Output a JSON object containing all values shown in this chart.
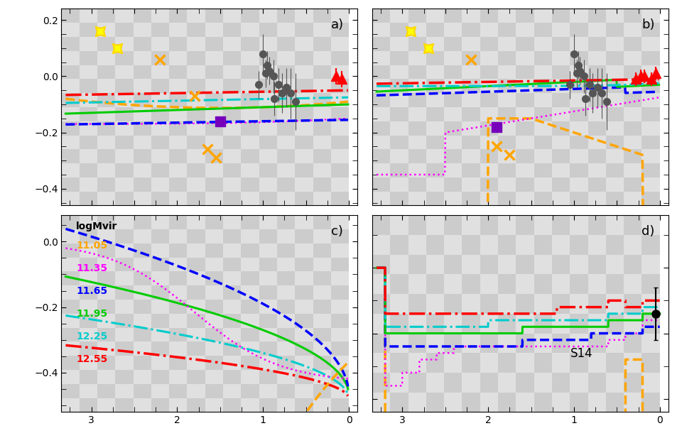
{
  "fig_width": 9.6,
  "fig_height": 6.24,
  "checker_color1": "#cccccc",
  "checker_color2": "#e0e0e0",
  "panel_labels": [
    "a)",
    "b)",
    "c)",
    "d)"
  ],
  "xlim": [
    3.35,
    -0.1
  ],
  "ylim_ab": [
    -0.46,
    0.24
  ],
  "ylim_c": [
    -0.52,
    0.08
  ],
  "ylim_d": [
    -0.22,
    0.08
  ],
  "legend_logMvir": [
    "11.05",
    "11.35",
    "11.65",
    "11.95",
    "12.25",
    "12.55"
  ],
  "legend_colors": [
    "#FFA500",
    "#FF00FF",
    "#0000FF",
    "#00CC00",
    "#00CCCC",
    "#FF0000"
  ],
  "line_styles_ab": [
    "--",
    ":",
    "--",
    "-",
    "-.",
    "-."
  ],
  "line_widths_ab": [
    2.5,
    1.8,
    2.5,
    2.2,
    2.2,
    2.5
  ],
  "line_styles_cd": [
    "--",
    ":",
    "--",
    "-",
    "-.",
    "-."
  ],
  "line_widths_cd": [
    2.5,
    1.8,
    2.5,
    2.2,
    2.2,
    2.5
  ]
}
